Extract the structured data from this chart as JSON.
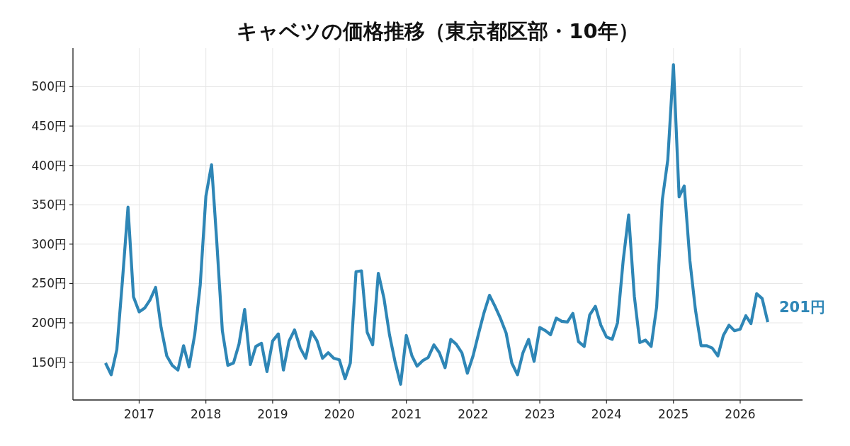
{
  "chart_data": {
    "type": "line",
    "title": "キャベツの価格推移（東京都区部・10年）",
    "x": [
      "2016-07",
      "2016-08",
      "2016-09",
      "2016-10",
      "2016-11",
      "2016-12",
      "2017-01",
      "2017-02",
      "2017-03",
      "2017-04",
      "2017-05",
      "2017-06",
      "2017-07",
      "2017-08",
      "2017-09",
      "2017-10",
      "2017-11",
      "2017-12",
      "2018-01",
      "2018-02",
      "2018-03",
      "2018-04",
      "2018-05",
      "2018-06",
      "2018-07",
      "2018-08",
      "2018-09",
      "2018-10",
      "2018-11",
      "2018-12",
      "2019-01",
      "2019-02",
      "2019-03",
      "2019-04",
      "2019-05",
      "2019-06",
      "2019-07",
      "2019-08",
      "2019-09",
      "2019-10",
      "2019-11",
      "2019-12",
      "2020-01",
      "2020-02",
      "2020-03",
      "2020-04",
      "2020-05",
      "2020-06",
      "2020-07",
      "2020-08",
      "2020-09",
      "2020-10",
      "2020-11",
      "2020-12",
      "2021-01",
      "2021-02",
      "2021-03",
      "2021-04",
      "2021-05",
      "2021-06",
      "2021-07",
      "2021-08",
      "2021-09",
      "2021-10",
      "2021-11",
      "2021-12",
      "2022-01",
      "2022-02",
      "2022-03",
      "2022-04",
      "2022-05",
      "2022-06",
      "2022-07",
      "2022-08",
      "2022-09",
      "2022-10",
      "2022-11",
      "2022-12",
      "2023-01",
      "2023-02",
      "2023-03",
      "2023-04",
      "2023-05",
      "2023-06",
      "2023-07",
      "2023-08",
      "2023-09",
      "2023-10",
      "2023-11",
      "2023-12",
      "2024-01",
      "2024-02",
      "2024-03",
      "2024-04",
      "2024-05",
      "2024-06",
      "2024-07",
      "2024-08",
      "2024-09",
      "2024-10",
      "2024-11",
      "2024-12",
      "2025-01",
      "2025-02",
      "2025-03",
      "2025-04",
      "2025-05",
      "2025-06",
      "2025-07",
      "2025-08",
      "2025-09",
      "2025-10",
      "2025-11",
      "2025-12",
      "2026-01",
      "2026-02",
      "2026-03",
      "2026-04",
      "2026-05",
      "2026-06"
    ],
    "series": [
      {
        "color": "#2e86b6",
        "values": [
          149,
          134,
          166,
          252,
          347,
          233,
          214,
          219,
          229,
          245,
          194,
          158,
          146,
          140,
          171,
          144,
          185,
          248,
          361,
          401,
          305,
          190,
          146,
          149,
          173,
          217,
          147,
          170,
          174,
          138,
          177,
          186,
          140,
          177,
          191,
          168,
          155,
          189,
          177,
          155,
          162,
          155,
          153,
          129,
          149,
          265,
          266,
          188,
          172,
          263,
          231,
          185,
          150,
          122,
          184,
          158,
          145,
          152,
          156,
          172,
          162,
          143,
          179,
          173,
          162,
          136,
          158,
          187,
          212,
          235,
          221,
          205,
          187,
          149,
          134,
          162,
          179,
          151,
          194,
          190,
          185,
          206,
          202,
          201,
          212,
          176,
          170,
          210,
          221,
          197,
          182,
          179,
          200,
          279,
          337,
          234,
          175,
          178,
          170,
          220,
          356,
          407,
          528,
          360,
          374,
          279,
          217,
          171,
          171,
          168,
          158,
          184,
          197,
          190,
          192,
          209,
          199,
          237,
          231,
          201
        ]
      }
    ],
    "xlim": [
      "2016-01-05",
      "2026-12-08"
    ],
    "xticks": [
      "2017",
      "2018",
      "2019",
      "2020",
      "2021",
      "2022",
      "2023",
      "2024",
      "2025",
      "2026"
    ],
    "ylim": [
      102,
      549
    ],
    "yticks": [
      {
        "value": 150,
        "label": "150円"
      },
      {
        "value": 200,
        "label": "200円"
      },
      {
        "value": 250,
        "label": "250円"
      },
      {
        "value": 300,
        "label": "300円"
      },
      {
        "value": 350,
        "label": "350円"
      },
      {
        "value": 400,
        "label": "400円"
      },
      {
        "value": 450,
        "label": "450円"
      },
      {
        "value": 500,
        "label": "500円"
      }
    ],
    "grid": true,
    "line_style": "solid",
    "annotations": [
      {
        "text": "201円",
        "x": "2026-06",
        "y": 201
      }
    ]
  }
}
